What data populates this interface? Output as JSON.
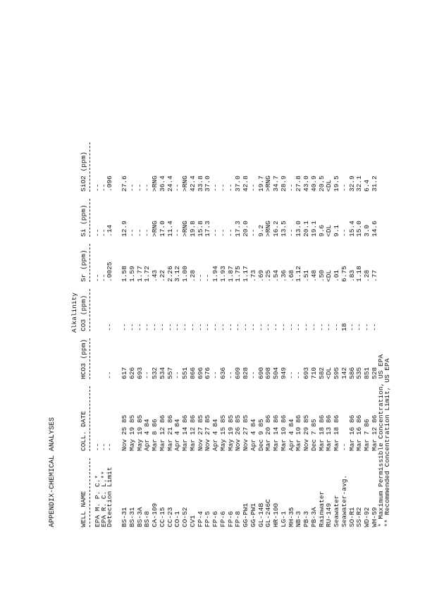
{
  "header": {
    "title": "APPENDIX-CHEMICAL ANALYSES"
  },
  "table": {
    "group_header": "Alkalinity",
    "columns": [
      "WELL NAME",
      "COLL. DATE",
      "HCO3 (ppm)",
      "CO3 (ppm)",
      "Sr (ppm)",
      "Si (ppm)",
      "SiO2 (ppm)"
    ],
    "limit_rows": [
      [
        "EPA M. P. C.*",
        "--",
        "",
        "",
        "--",
        "--",
        "--"
      ],
      [
        "EPA R. C. L.**",
        "--",
        "",
        "",
        "--",
        "--",
        "--"
      ],
      [
        "Detection Limit",
        "--",
        "--",
        "--",
        ".0025",
        ".14",
        ".096"
      ]
    ],
    "rows": [
      [
        "BS-31",
        "Nov 25 85",
        "617",
        "--",
        "1.58",
        "12.9",
        "27.6"
      ],
      [
        "BS-31",
        "May 19 85",
        "626",
        "--",
        "1.59",
        "--",
        "--"
      ],
      [
        "BS-3A",
        "May 19 85",
        "693",
        "--",
        "1.77",
        "--",
        "--"
      ],
      [
        "BS-8",
        "Apr 4 84",
        "--",
        "--",
        "1.72",
        "--",
        "--"
      ],
      [
        "CA-109",
        "Mar 8 86",
        "532",
        "--",
        ".43",
        ">RNG",
        ">RNG"
      ],
      [
        "CC-15",
        "Mar 12 86",
        "534",
        "--",
        ".22",
        "17.0",
        "36.4"
      ],
      [
        "CC-23",
        "Mar 21 86",
        "557",
        "--",
        "2.26",
        "11.4",
        "24.4"
      ],
      [
        "CO-1",
        "Apr 4 84",
        "--",
        "--",
        "3.12",
        "--",
        "--"
      ],
      [
        "CO-52",
        "Mar 14 86",
        "551",
        "--",
        "1.00",
        ">RNG",
        ">RNG"
      ],
      [
        "CV1",
        "Mar 12 86",
        "866",
        "--",
        ".28",
        "19.8",
        "42.4"
      ],
      [
        "FP-4",
        "Nov 27 85",
        "696",
        "--",
        "--",
        "15.8",
        "33.8"
      ],
      [
        "FP-5",
        "Nov 27 85",
        "676",
        "--",
        "--",
        "17.3",
        "37.0"
      ],
      [
        "FP-6",
        "Apr 4 84",
        "--",
        "--",
        "1.94",
        "--",
        "--"
      ],
      [
        "FP-6",
        "May 15 85",
        "636",
        "--",
        "1.93",
        "--",
        "--"
      ],
      [
        "FP-6",
        "May 19 85",
        "--",
        "--",
        "1.87",
        "--",
        "--"
      ],
      [
        "FP-8",
        "Nov 26 85",
        "609",
        "--",
        "1.75",
        "17.3",
        "37.0"
      ],
      [
        "GG-PW1",
        "Nov 27 85",
        "828",
        "--",
        "1.17",
        "20.0",
        "42.8"
      ],
      [
        "GG-PW1",
        "Apr 4 84",
        "--",
        "--",
        ".73",
        "--",
        "--"
      ],
      [
        "GL-14B",
        "Dec 9 85",
        "690",
        "--",
        ".69",
        "9.2",
        "19.7"
      ],
      [
        "GL-246C",
        "Mar 20 86",
        "698",
        "--",
        ".25",
        ">RNG",
        ">RNG"
      ],
      [
        "HR-100",
        "Mar 14 86",
        "504",
        "--",
        ".54",
        "16.2",
        "34.7"
      ],
      [
        "LG-1",
        "Mar 10 86",
        "949",
        "--",
        ".36",
        "13.5",
        "28.9"
      ],
      [
        "MH-35",
        "Apr 4 84",
        "--",
        "--",
        ".68",
        "--",
        "--"
      ],
      [
        "NB-3",
        "Mar 10 86",
        "--",
        "--",
        "1.12",
        "13.0",
        "27.8"
      ],
      [
        "PB-3",
        "Nov 29 85",
        "693",
        "--",
        ".51",
        "20.1",
        "43.0"
      ],
      [
        "PB-3A",
        "Dec 7 85",
        "710",
        "--",
        ".48",
        "19.1",
        "40.9"
      ],
      [
        "Rainwater",
        "Mar 18 86",
        "582",
        "--",
        ".50",
        "9.6",
        "20.5"
      ],
      [
        "RU-149",
        "Mar 13 86",
        "<DL",
        "--",
        "<DL",
        "<DL",
        "<DL"
      ],
      [
        "Seawater",
        "Mar 18 86",
        "595",
        "--",
        ".01",
        "9.1",
        "19.5"
      ],
      [
        "Seawater-avg.",
        "--",
        "142",
        "18",
        "6.75",
        "--",
        "--"
      ],
      [
        "SO-R1",
        "Mar 16 86",
        "586",
        "--",
        ".83",
        "15.4",
        "32.9"
      ],
      [
        "SS-R2",
        "Mar 16 86",
        "535",
        "--",
        "1.18",
        "15.0",
        "32.1"
      ],
      [
        "WD-92",
        "Mar 7 86",
        "851",
        "--",
        ".28",
        "3.0",
        "6.4"
      ],
      [
        "WH-59",
        "Mar 12 86",
        "528",
        "--",
        ".77",
        "14.6",
        "31.2"
      ]
    ]
  },
  "footnotes": [
    "* Maximum Permissible Concentration, US EPA",
    "** Recommended Concentration Limit, US EPA"
  ]
}
